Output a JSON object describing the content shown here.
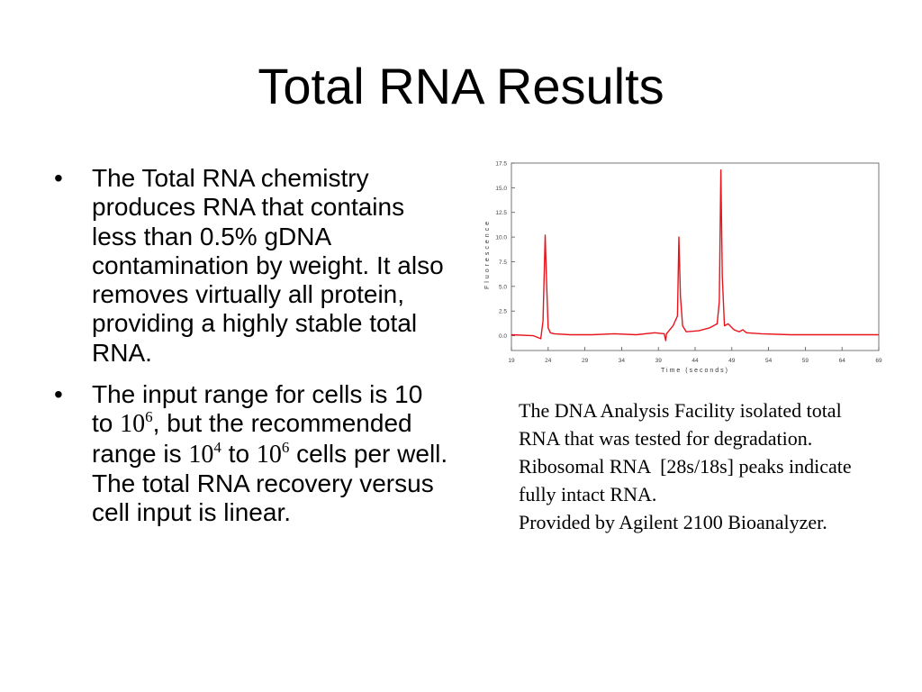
{
  "slide": {
    "title": "Total RNA Results"
  },
  "bullets": [
    {
      "marker": "•",
      "text": "The Total RNA chemistry produces RNA that contains less than 0.5% gDNA contamination by weight.  It also removes virtually all protein, providing a highly stable total RNA."
    },
    {
      "marker": "•",
      "part1": " The input range for cells is 10 to ",
      "exp1_base": "10",
      "exp1_sup": "6",
      "part2": ", but the recommended range is ",
      "exp2_base": "10",
      "exp2_sup": "4",
      "part3": " to ",
      "exp3_base": "10",
      "exp3_sup": "6",
      "part4": " cells per well.  The total RNA recovery versus cell input is linear."
    }
  ],
  "caption": {
    "line1": "The DNA Analysis Facility isolated total RNA that was tested for degradation.",
    "line2": "Ribosomal RNA  [28s/18s] peaks indicate fully intact RNA.",
    "line3": "Provided by Agilent 2100 Bioanalyzer."
  },
  "chart_data": {
    "type": "line",
    "title": "",
    "xlabel": "Time (seconds)",
    "ylabel": "Fluorescence",
    "xlim": [
      19,
      69
    ],
    "ylim": [
      -1.5,
      17.5
    ],
    "x_ticks": [
      "19",
      "24",
      "29",
      "34",
      "39",
      "44",
      "49",
      "54",
      "59",
      "64",
      "69"
    ],
    "y_ticks": [
      "0.0",
      "2.5",
      "5.0",
      "7.5",
      "10.0",
      "12.5",
      "15.0",
      "17.5"
    ],
    "grid": false,
    "line_color": "#e8141c",
    "series": [
      {
        "x": [
          19,
          22,
          23.0,
          23.3,
          23.6,
          23.8,
          24.0,
          24.3,
          24.8,
          27,
          30,
          33,
          36,
          38.5,
          39.8,
          40.0,
          40.1,
          41.0,
          41.6,
          41.8,
          42.0,
          42.3,
          42.8,
          44.5,
          46.0,
          47.0,
          47.3,
          47.5,
          47.7,
          48.0,
          48.5,
          49.3,
          50.0,
          50.5,
          51.0,
          53,
          57,
          61,
          65,
          69
        ],
        "y": [
          0.1,
          0.0,
          -0.3,
          1.5,
          10.2,
          5.0,
          0.8,
          0.3,
          0.2,
          0.1,
          0.1,
          0.2,
          0.1,
          0.3,
          0.2,
          -0.5,
          0.2,
          1.0,
          2.0,
          10.0,
          4.0,
          1.0,
          0.4,
          0.5,
          0.8,
          1.2,
          3.5,
          16.8,
          6.0,
          1.0,
          1.2,
          0.6,
          0.4,
          0.6,
          0.3,
          0.2,
          0.1,
          0.1,
          0.1,
          0.1
        ]
      }
    ]
  }
}
